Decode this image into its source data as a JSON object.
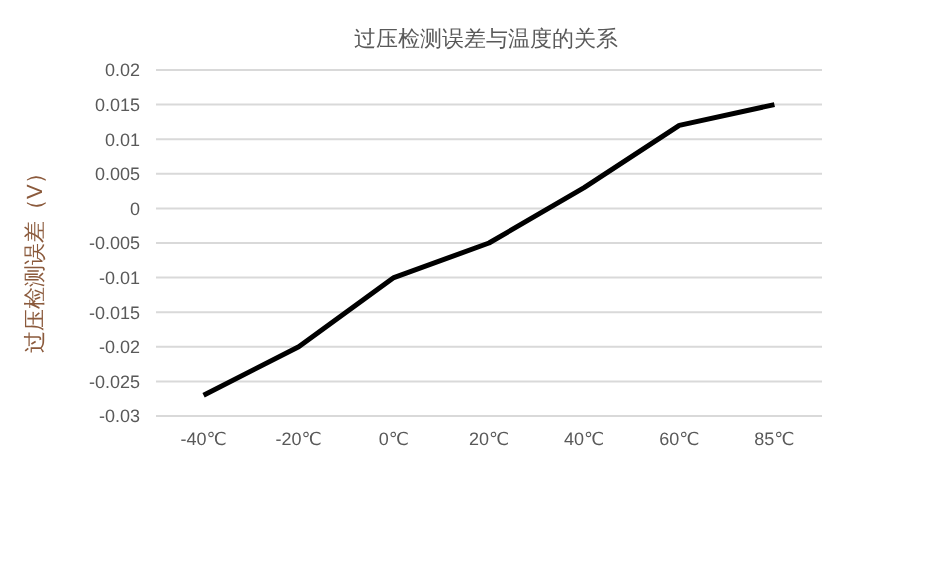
{
  "chart_data": {
    "type": "line",
    "title": "过压检测误差与温度的关系",
    "ylabel": "过压检测误差（V）",
    "categories": [
      "-40℃",
      "-20℃",
      "0℃",
      "20℃",
      "40℃",
      "60℃",
      "85℃"
    ],
    "series": [
      {
        "color": "#000000",
        "values": [
          -0.027,
          -0.02,
          -0.01,
          -0.005,
          0.003,
          0.012,
          0.015
        ]
      }
    ],
    "ylim": [
      -0.03,
      0.02
    ],
    "yticks": [
      -0.03,
      -0.025,
      -0.02,
      -0.015,
      -0.01,
      -0.005,
      0,
      0.005,
      0.01,
      0.015,
      0.02
    ],
    "grid": "y",
    "legend": false,
    "marker": "none",
    "line_style": "solid"
  }
}
